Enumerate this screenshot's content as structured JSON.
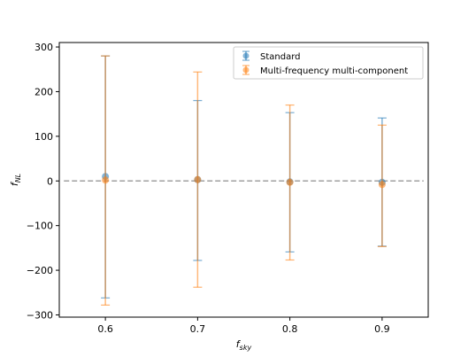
{
  "chart_data": {
    "type": "scatter",
    "subtype": "errorbar",
    "title": "",
    "xlabel": "f",
    "xlabel_sub": "sky",
    "ylabel": "f",
    "ylabel_sub": "NL",
    "xlim": [
      0.55,
      0.95
    ],
    "ylim": [
      -305,
      310
    ],
    "x_ticks": [
      0.6,
      0.7,
      0.8,
      0.9
    ],
    "x_tick_labels": [
      "0.6",
      "0.7",
      "0.8",
      "0.9"
    ],
    "y_ticks": [
      -300,
      -200,
      -100,
      0,
      100,
      200,
      300
    ],
    "y_tick_labels": [
      "−300",
      "−200",
      "−100",
      "0",
      "100",
      "200",
      "300"
    ],
    "grid": false,
    "legend_position": "top-right",
    "reference_line": {
      "y": 0,
      "style": "dashed",
      "color": "#a0a0a0"
    },
    "series": [
      {
        "name": "Standard",
        "color": "#1f77b4",
        "x": [
          0.6,
          0.7,
          0.8,
          0.9
        ],
        "y": [
          10,
          3,
          -2,
          -3
        ],
        "err_low": [
          -262,
          -178,
          -159,
          -146
        ],
        "err_high": [
          280,
          180,
          153,
          141
        ]
      },
      {
        "name": "Multi-frequency multi-component",
        "color": "#ff7f0e",
        "x": [
          0.6,
          0.7,
          0.8,
          0.9
        ],
        "y": [
          2,
          3,
          -3,
          -8
        ],
        "err_low": [
          -278,
          -238,
          -177,
          -147
        ],
        "err_high": [
          280,
          244,
          170,
          125
        ]
      }
    ]
  }
}
